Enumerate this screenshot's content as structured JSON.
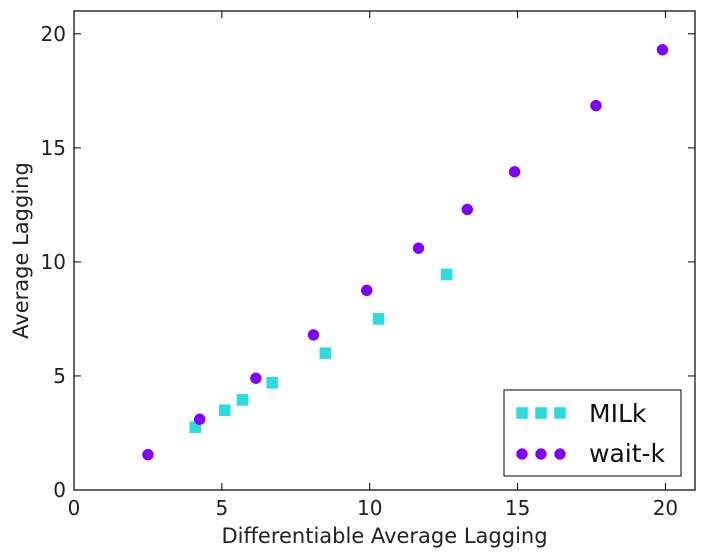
{
  "chart_data": {
    "type": "scatter",
    "title": "",
    "xlabel": "Differentiable Average Lagging",
    "ylabel": "Average Lagging",
    "xlim": [
      0,
      21
    ],
    "ylim": [
      0,
      21
    ],
    "xticks": [
      0,
      5,
      10,
      15,
      20
    ],
    "yticks": [
      0,
      5,
      10,
      15,
      20
    ],
    "grid": false,
    "legend_position": "bottom-right",
    "series": [
      {
        "name": "MILk",
        "marker": "square",
        "color": "#2bdcdc",
        "points": [
          [
            4.1,
            2.75
          ],
          [
            5.1,
            3.5
          ],
          [
            5.7,
            3.95
          ],
          [
            6.7,
            4.7
          ],
          [
            8.5,
            6.0
          ],
          [
            10.3,
            7.5
          ],
          [
            12.6,
            9.45
          ]
        ]
      },
      {
        "name": "wait-k",
        "marker": "circle",
        "color": "#8000ff",
        "points": [
          [
            2.5,
            1.55
          ],
          [
            4.25,
            3.1
          ],
          [
            6.15,
            4.9
          ],
          [
            8.1,
            6.8
          ],
          [
            9.9,
            8.75
          ],
          [
            11.65,
            10.6
          ],
          [
            13.3,
            12.3
          ],
          [
            14.9,
            13.95
          ],
          [
            17.65,
            16.85
          ],
          [
            19.9,
            19.3
          ]
        ]
      }
    ]
  }
}
